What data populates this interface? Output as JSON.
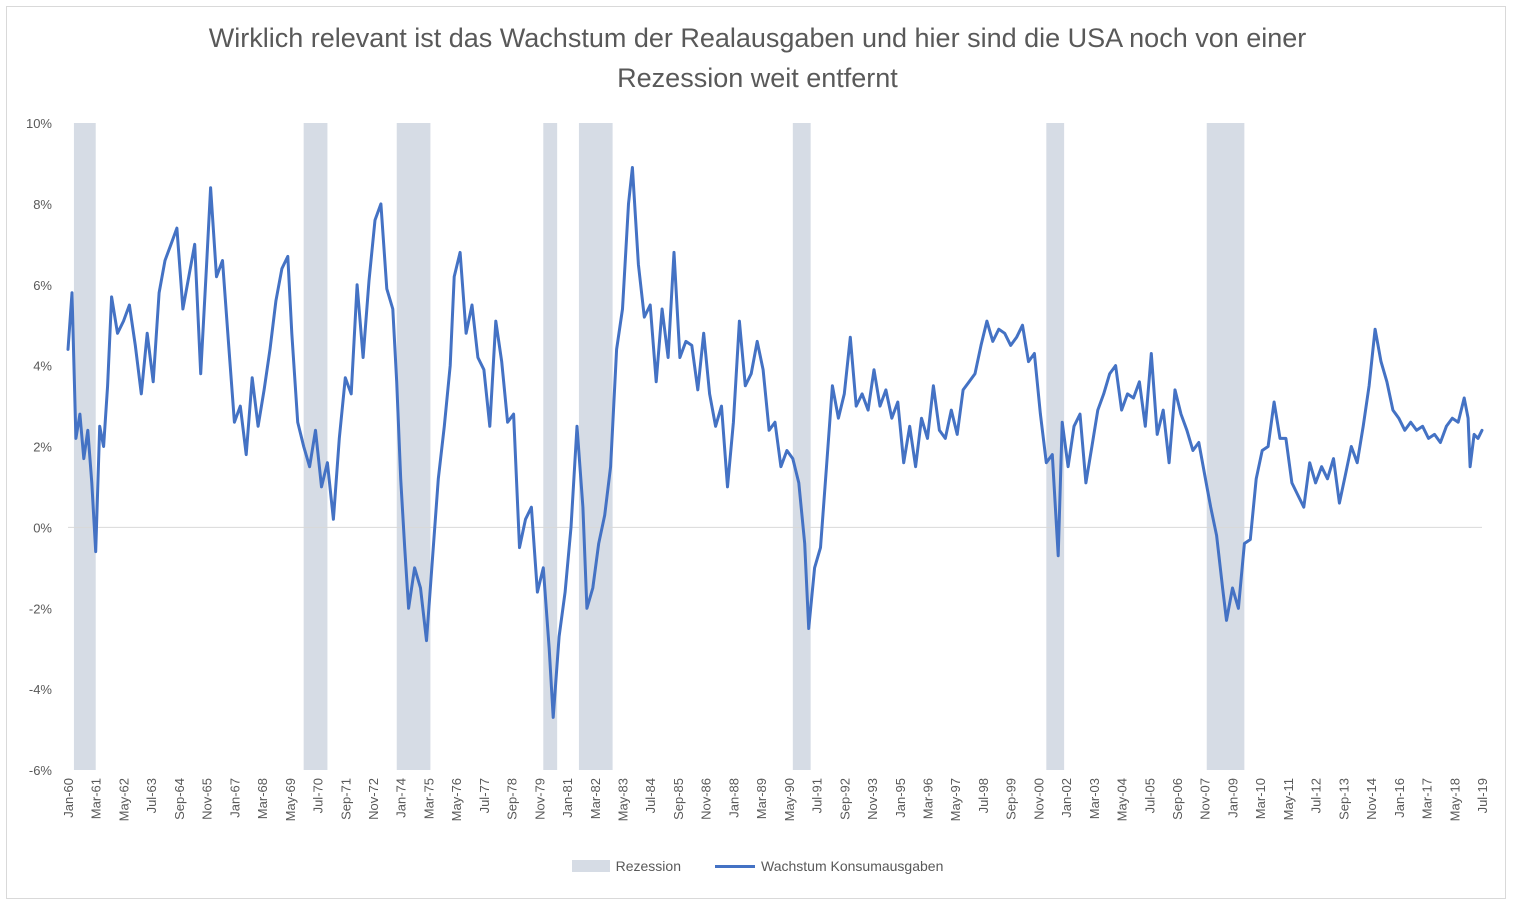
{
  "chart_data": {
    "type": "line",
    "title": "Wirklich relevant ist das Wachstum der Realausgaben und hier sind die USA noch von einer Rezession weit entfernt",
    "title_lines": [
      "Wirklich relevant ist das Wachstum der Realausgaben und hier sind die USA noch von einer",
      "Rezession weit entfernt"
    ],
    "xlabel": "",
    "ylabel": "",
    "ylim": [
      -6,
      10
    ],
    "yticks": [
      "10%",
      "8%",
      "6%",
      "4%",
      "2%",
      "0%",
      "-2%",
      "-4%",
      "-6%"
    ],
    "yticks_values": [
      10,
      8,
      6,
      4,
      2,
      0,
      -2,
      -4,
      -6
    ],
    "xlim": [
      "1960-01",
      "2019-07"
    ],
    "xticks": [
      "Jan-60",
      "Mar-61",
      "May-62",
      "Jul-63",
      "Sep-64",
      "Nov-65",
      "Jan-67",
      "Mar-68",
      "May-69",
      "Jul-70",
      "Sep-71",
      "Nov-72",
      "Jan-74",
      "Mar-75",
      "May-76",
      "Jul-77",
      "Sep-78",
      "Nov-79",
      "Jan-81",
      "Mar-82",
      "May-83",
      "Jul-84",
      "Sep-85",
      "Nov-86",
      "Jan-88",
      "Mar-89",
      "May-90",
      "Jul-91",
      "Sep-92",
      "Nov-93",
      "Jan-95",
      "Mar-96",
      "May-97",
      "Jul-98",
      "Sep-99",
      "Nov-00",
      "Jan-02",
      "Mar-03",
      "May-04",
      "Jul-05",
      "Sep-06",
      "Nov-07",
      "Jan-09",
      "Mar-10",
      "May-11",
      "Jul-12",
      "Sep-13",
      "Nov-14",
      "Jan-16",
      "Mar-17",
      "May-18",
      "Jul-19"
    ],
    "legend_placement": "bottom",
    "grid": false,
    "colors": {
      "line": "#4472c4",
      "recession": "#d6dce5",
      "axis": "#d9d9d9",
      "text": "#595959"
    },
    "recessions": [
      {
        "start": "1960-04",
        "end": "1961-02"
      },
      {
        "start": "1969-12",
        "end": "1970-11"
      },
      {
        "start": "1973-11",
        "end": "1975-03"
      },
      {
        "start": "1980-01",
        "end": "1980-07"
      },
      {
        "start": "1981-07",
        "end": "1982-11"
      },
      {
        "start": "1990-07",
        "end": "1991-03"
      },
      {
        "start": "2001-03",
        "end": "2001-11"
      },
      {
        "start": "2007-12",
        "end": "2009-06"
      }
    ],
    "series": [
      {
        "name": "Rezession",
        "kind": "band"
      },
      {
        "name": "Wachstum Konsumausgaben",
        "kind": "line",
        "points": [
          [
            "1960-01",
            4.4
          ],
          [
            "1960-03",
            5.8
          ],
          [
            "1960-05",
            2.2
          ],
          [
            "1960-07",
            2.8
          ],
          [
            "1960-09",
            1.7
          ],
          [
            "1960-11",
            2.4
          ],
          [
            "1961-01",
            1.1
          ],
          [
            "1961-03",
            -0.6
          ],
          [
            "1961-05",
            2.5
          ],
          [
            "1961-07",
            2.0
          ],
          [
            "1961-09",
            3.5
          ],
          [
            "1961-11",
            5.7
          ],
          [
            "1962-02",
            4.8
          ],
          [
            "1962-05",
            5.1
          ],
          [
            "1962-08",
            5.5
          ],
          [
            "1962-11",
            4.5
          ],
          [
            "1963-02",
            3.3
          ],
          [
            "1963-05",
            4.8
          ],
          [
            "1963-08",
            3.6
          ],
          [
            "1963-11",
            5.8
          ],
          [
            "1964-02",
            6.6
          ],
          [
            "1964-05",
            7.0
          ],
          [
            "1964-08",
            7.4
          ],
          [
            "1964-11",
            5.4
          ],
          [
            "1965-02",
            6.2
          ],
          [
            "1965-05",
            7.0
          ],
          [
            "1965-08",
            3.8
          ],
          [
            "1965-11",
            6.5
          ],
          [
            "1966-01",
            8.4
          ],
          [
            "1966-04",
            6.2
          ],
          [
            "1966-07",
            6.6
          ],
          [
            "1966-10",
            4.6
          ],
          [
            "1967-01",
            2.6
          ],
          [
            "1967-04",
            3.0
          ],
          [
            "1967-07",
            1.8
          ],
          [
            "1967-10",
            3.7
          ],
          [
            "1968-01",
            2.5
          ],
          [
            "1968-04",
            3.4
          ],
          [
            "1968-07",
            4.4
          ],
          [
            "1968-10",
            5.6
          ],
          [
            "1969-01",
            6.4
          ],
          [
            "1969-04",
            6.7
          ],
          [
            "1969-06",
            4.8
          ],
          [
            "1969-09",
            2.6
          ],
          [
            "1969-12",
            2.0
          ],
          [
            "1970-03",
            1.5
          ],
          [
            "1970-06",
            2.4
          ],
          [
            "1970-09",
            1.0
          ],
          [
            "1970-12",
            1.6
          ],
          [
            "1971-03",
            0.2
          ],
          [
            "1971-06",
            2.2
          ],
          [
            "1971-09",
            3.7
          ],
          [
            "1971-12",
            3.3
          ],
          [
            "1972-03",
            6.0
          ],
          [
            "1972-06",
            4.2
          ],
          [
            "1972-09",
            6.1
          ],
          [
            "1972-12",
            7.6
          ],
          [
            "1973-03",
            8.0
          ],
          [
            "1973-06",
            5.9
          ],
          [
            "1973-09",
            5.4
          ],
          [
            "1973-11",
            3.6
          ],
          [
            "1974-01",
            1.2
          ],
          [
            "1974-03",
            -0.5
          ],
          [
            "1974-05",
            -2.0
          ],
          [
            "1974-08",
            -1.0
          ],
          [
            "1974-11",
            -1.5
          ],
          [
            "1975-02",
            -2.8
          ],
          [
            "1975-05",
            -0.8
          ],
          [
            "1975-08",
            1.2
          ],
          [
            "1975-11",
            2.5
          ],
          [
            "1976-02",
            4.0
          ],
          [
            "1976-04",
            6.2
          ],
          [
            "1976-07",
            6.8
          ],
          [
            "1976-10",
            4.8
          ],
          [
            "1977-01",
            5.5
          ],
          [
            "1977-04",
            4.2
          ],
          [
            "1977-07",
            3.9
          ],
          [
            "1977-10",
            2.5
          ],
          [
            "1978-01",
            5.1
          ],
          [
            "1978-04",
            4.1
          ],
          [
            "1978-07",
            2.6
          ],
          [
            "1978-10",
            2.8
          ],
          [
            "1979-01",
            -0.5
          ],
          [
            "1979-04",
            0.2
          ],
          [
            "1979-07",
            0.5
          ],
          [
            "1979-10",
            -1.6
          ],
          [
            "1980-01",
            -1.0
          ],
          [
            "1980-04",
            -3.0
          ],
          [
            "1980-06",
            -4.7
          ],
          [
            "1980-09",
            -2.7
          ],
          [
            "1980-12",
            -1.6
          ],
          [
            "1981-03",
            0.0
          ],
          [
            "1981-06",
            2.5
          ],
          [
            "1981-09",
            0.5
          ],
          [
            "1981-11",
            -2.0
          ],
          [
            "1982-02",
            -1.5
          ],
          [
            "1982-05",
            -0.4
          ],
          [
            "1982-08",
            0.3
          ],
          [
            "1982-11",
            1.5
          ],
          [
            "1983-02",
            4.4
          ],
          [
            "1983-05",
            5.4
          ],
          [
            "1983-08",
            8.0
          ],
          [
            "1983-10",
            8.9
          ],
          [
            "1984-01",
            6.5
          ],
          [
            "1984-04",
            5.2
          ],
          [
            "1984-07",
            5.5
          ],
          [
            "1984-10",
            3.6
          ],
          [
            "1985-01",
            5.4
          ],
          [
            "1985-04",
            4.2
          ],
          [
            "1985-07",
            6.8
          ],
          [
            "1985-10",
            4.2
          ],
          [
            "1986-01",
            4.6
          ],
          [
            "1986-04",
            4.5
          ],
          [
            "1986-07",
            3.4
          ],
          [
            "1986-10",
            4.8
          ],
          [
            "1987-01",
            3.3
          ],
          [
            "1987-04",
            2.5
          ],
          [
            "1987-07",
            3.0
          ],
          [
            "1987-10",
            1.0
          ],
          [
            "1988-01",
            2.6
          ],
          [
            "1988-04",
            5.1
          ],
          [
            "1988-07",
            3.5
          ],
          [
            "1988-10",
            3.8
          ],
          [
            "1989-01",
            4.6
          ],
          [
            "1989-04",
            3.9
          ],
          [
            "1989-07",
            2.4
          ],
          [
            "1989-10",
            2.6
          ],
          [
            "1990-01",
            1.5
          ],
          [
            "1990-04",
            1.9
          ],
          [
            "1990-07",
            1.7
          ],
          [
            "1990-10",
            1.1
          ],
          [
            "1991-01",
            -0.4
          ],
          [
            "1991-03",
            -2.5
          ],
          [
            "1991-06",
            -1.0
          ],
          [
            "1991-09",
            -0.5
          ],
          [
            "1991-12",
            1.5
          ],
          [
            "1992-03",
            3.5
          ],
          [
            "1992-06",
            2.7
          ],
          [
            "1992-09",
            3.3
          ],
          [
            "1992-12",
            4.7
          ],
          [
            "1993-03",
            3.0
          ],
          [
            "1993-06",
            3.3
          ],
          [
            "1993-09",
            2.9
          ],
          [
            "1993-12",
            3.9
          ],
          [
            "1994-03",
            3.0
          ],
          [
            "1994-06",
            3.4
          ],
          [
            "1994-09",
            2.7
          ],
          [
            "1994-12",
            3.1
          ],
          [
            "1995-03",
            1.6
          ],
          [
            "1995-06",
            2.5
          ],
          [
            "1995-09",
            1.5
          ],
          [
            "1995-12",
            2.7
          ],
          [
            "1996-03",
            2.2
          ],
          [
            "1996-06",
            3.5
          ],
          [
            "1996-09",
            2.4
          ],
          [
            "1996-12",
            2.2
          ],
          [
            "1997-03",
            2.9
          ],
          [
            "1997-06",
            2.3
          ],
          [
            "1997-09",
            3.4
          ],
          [
            "1997-12",
            3.6
          ],
          [
            "1998-03",
            3.8
          ],
          [
            "1998-06",
            4.5
          ],
          [
            "1998-09",
            5.1
          ],
          [
            "1998-12",
            4.6
          ],
          [
            "1999-03",
            4.9
          ],
          [
            "1999-06",
            4.8
          ],
          [
            "1999-09",
            4.5
          ],
          [
            "1999-12",
            4.7
          ],
          [
            "2000-03",
            5.0
          ],
          [
            "2000-06",
            4.1
          ],
          [
            "2000-09",
            4.3
          ],
          [
            "2000-12",
            2.8
          ],
          [
            "2001-03",
            1.6
          ],
          [
            "2001-06",
            1.8
          ],
          [
            "2001-09",
            -0.7
          ],
          [
            "2001-11",
            2.6
          ],
          [
            "2002-02",
            1.5
          ],
          [
            "2002-05",
            2.5
          ],
          [
            "2002-08",
            2.8
          ],
          [
            "2002-11",
            1.1
          ],
          [
            "2003-02",
            2.0
          ],
          [
            "2003-05",
            2.9
          ],
          [
            "2003-08",
            3.3
          ],
          [
            "2003-11",
            3.8
          ],
          [
            "2004-02",
            4.0
          ],
          [
            "2004-05",
            2.9
          ],
          [
            "2004-08",
            3.3
          ],
          [
            "2004-11",
            3.2
          ],
          [
            "2005-02",
            3.6
          ],
          [
            "2005-05",
            2.5
          ],
          [
            "2005-08",
            4.3
          ],
          [
            "2005-11",
            2.3
          ],
          [
            "2006-02",
            2.9
          ],
          [
            "2006-05",
            1.6
          ],
          [
            "2006-08",
            3.4
          ],
          [
            "2006-11",
            2.8
          ],
          [
            "2007-02",
            2.4
          ],
          [
            "2007-05",
            1.9
          ],
          [
            "2007-08",
            2.1
          ],
          [
            "2007-11",
            1.3
          ],
          [
            "2008-02",
            0.5
          ],
          [
            "2008-05",
            -0.2
          ],
          [
            "2008-08",
            -1.5
          ],
          [
            "2008-10",
            -2.3
          ],
          [
            "2009-01",
            -1.5
          ],
          [
            "2009-04",
            -2.0
          ],
          [
            "2009-07",
            -0.4
          ],
          [
            "2009-10",
            -0.3
          ],
          [
            "2010-01",
            1.2
          ],
          [
            "2010-04",
            1.9
          ],
          [
            "2010-07",
            2.0
          ],
          [
            "2010-10",
            3.1
          ],
          [
            "2011-01",
            2.2
          ],
          [
            "2011-04",
            2.2
          ],
          [
            "2011-07",
            1.1
          ],
          [
            "2011-10",
            0.8
          ],
          [
            "2012-01",
            0.5
          ],
          [
            "2012-04",
            1.6
          ],
          [
            "2012-07",
            1.1
          ],
          [
            "2012-10",
            1.5
          ],
          [
            "2013-01",
            1.2
          ],
          [
            "2013-04",
            1.7
          ],
          [
            "2013-07",
            0.6
          ],
          [
            "2013-10",
            1.3
          ],
          [
            "2014-01",
            2.0
          ],
          [
            "2014-04",
            1.6
          ],
          [
            "2014-07",
            2.5
          ],
          [
            "2014-10",
            3.5
          ],
          [
            "2015-01",
            4.9
          ],
          [
            "2015-04",
            4.1
          ],
          [
            "2015-07",
            3.6
          ],
          [
            "2015-10",
            2.9
          ],
          [
            "2016-01",
            2.7
          ],
          [
            "2016-04",
            2.4
          ],
          [
            "2016-07",
            2.6
          ],
          [
            "2016-10",
            2.4
          ],
          [
            "2017-01",
            2.5
          ],
          [
            "2017-04",
            2.2
          ],
          [
            "2017-07",
            2.3
          ],
          [
            "2017-10",
            2.1
          ],
          [
            "2018-01",
            2.5
          ],
          [
            "2018-04",
            2.7
          ],
          [
            "2018-07",
            2.6
          ],
          [
            "2018-10",
            3.2
          ],
          [
            "2018-12",
            2.7
          ],
          [
            "2019-01",
            1.5
          ],
          [
            "2019-03",
            2.3
          ],
          [
            "2019-05",
            2.2
          ],
          [
            "2019-07",
            2.4
          ]
        ]
      }
    ]
  }
}
